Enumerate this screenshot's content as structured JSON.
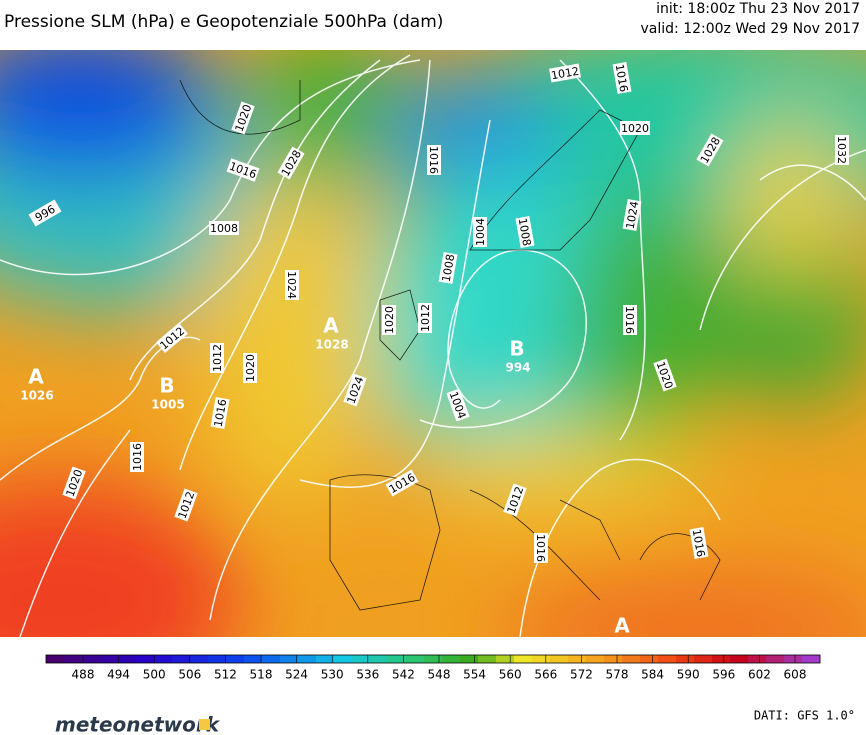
{
  "header": {
    "title": "Pressione SLM (hPa) e Geopotenziale 500hPa (dam)",
    "init": "init: 18:00z Thu 23 Nov 2017",
    "valid": "valid: 12:00z Wed 29 Nov 2017"
  },
  "map": {
    "isobar_labels": [
      "1012",
      "1016",
      "1020",
      "1016",
      "1028",
      "996",
      "1008",
      "1016",
      "1020",
      "1028",
      "1032",
      "1004",
      "1008",
      "1024",
      "1024",
      "1008",
      "1012",
      "1020",
      "1012",
      "1016",
      "1012",
      "1020",
      "1024",
      "1016",
      "1020",
      "1004",
      "1016",
      "1020",
      "1016",
      "1012",
      "1012",
      "1016",
      "1016"
    ],
    "centers": [
      {
        "symbol": "A",
        "value": "1028"
      },
      {
        "symbol": "A",
        "value": "1026"
      },
      {
        "symbol": "B",
        "value": "1005"
      },
      {
        "symbol": "B",
        "value": "994"
      },
      {
        "symbol": "A",
        "value": null
      }
    ]
  },
  "colorbar": {
    "ticks": [
      488,
      494,
      500,
      506,
      512,
      518,
      524,
      530,
      536,
      542,
      548,
      554,
      560,
      566,
      572,
      578,
      584,
      590,
      596,
      602,
      608
    ]
  },
  "footer": {
    "logo": "meteonetwork",
    "credit": "DATI: GFS 1.0°"
  }
}
